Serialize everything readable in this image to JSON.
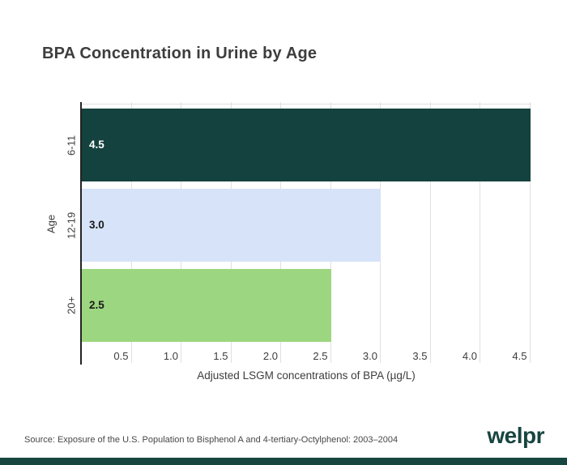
{
  "page": {
    "title": "BPA Concentration in Urine by Age",
    "source": "Source: Exposure of the U.S. Population to Bisphenol A and 4-tertiary-Octylphenol: 2003–2004",
    "brand": "welpr"
  },
  "colors": {
    "title_text": "#3d3d3d",
    "axis_text": "#3d3d3d",
    "axis_line": "#232323",
    "gridline": "#e0e0e0",
    "source_text": "#474747",
    "brand_teal": "#174540",
    "footer_accent": "#174540"
  },
  "chart_data": {
    "type": "bar",
    "orientation": "horizontal",
    "title": "BPA Concentration in Urine by Age",
    "categories": [
      "6-11",
      "12-19",
      "20+"
    ],
    "values": [
      4.5,
      3.0,
      2.5
    ],
    "value_labels": [
      "4.5",
      "3.0",
      "2.5"
    ],
    "bar_colors": [
      "#14423e",
      "#d6e3f8",
      "#9dd680"
    ],
    "value_label_colors": [
      "#ffffff",
      "#1a1a1a",
      "#1a1a1a"
    ],
    "xlabel": "Adjusted LSGM concentrations of BPA (µg/L)",
    "ylabel": "Age",
    "xlim": [
      0,
      4.6
    ],
    "xticks": [
      0.5,
      1.0,
      1.5,
      2.0,
      2.5,
      3.0,
      3.5,
      4.0,
      4.5
    ],
    "xtick_labels": [
      "0.5",
      "1.0",
      "1.5",
      "2.0",
      "2.5",
      "3.0",
      "3.5",
      "4.0",
      "4.5"
    ],
    "grid": true,
    "legend": false
  }
}
